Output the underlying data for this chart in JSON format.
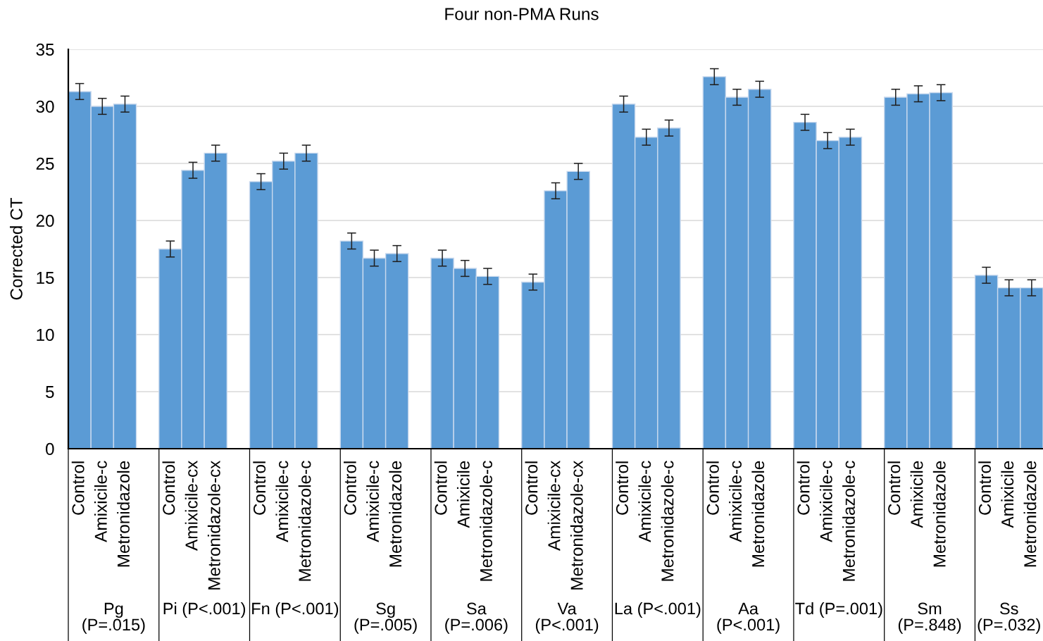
{
  "chart_data": {
    "type": "bar",
    "title": "Four non-PMA Runs",
    "ylabel": "Corrected CT",
    "categories": [
      "Control",
      "Amixicile-c",
      "Metronidazole",
      "Control",
      "Amixicile-cx",
      "Metronidazole-cx",
      "Control",
      "Amixicile-c",
      "Metronidazole-c",
      "Control",
      "Amixicile-c",
      "Metronidazole",
      "Control",
      "Amixicile",
      "Metronidazole-c",
      "Control",
      "Amixicile-cx",
      "Metronidazole-cx",
      "Control",
      "Amixicile-c",
      "Metronidazole-c",
      "Control",
      "Amixicile-c",
      "Metronidazole",
      "Control",
      "Amixicile-c",
      "Metronidazole-c",
      "Control",
      "Amixicile",
      "Metronidazole",
      "Control",
      "Amixicile",
      "Metronidazole"
    ],
    "values": [
      31.3,
      30.0,
      30.2,
      17.5,
      24.4,
      25.9,
      23.4,
      25.2,
      25.9,
      18.2,
      16.7,
      17.1,
      16.7,
      15.8,
      15.1,
      14.6,
      22.6,
      24.3,
      30.2,
      27.3,
      28.1,
      32.6,
      30.8,
      31.5,
      28.6,
      27.0,
      27.3,
      30.8,
      31.1,
      31.2,
      15.2,
      14.1,
      14.1
    ],
    "errors": [
      0.7,
      0.7,
      0.7,
      0.7,
      0.7,
      0.7,
      0.7,
      0.7,
      0.7,
      0.7,
      0.7,
      0.7,
      0.7,
      0.7,
      0.7,
      0.7,
      0.7,
      0.7,
      0.7,
      0.7,
      0.7,
      0.7,
      0.7,
      0.7,
      0.7,
      0.7,
      0.7,
      0.7,
      0.7,
      0.7,
      0.7,
      0.7,
      0.7
    ],
    "color": "#5b9bd5",
    "ylim": [
      0,
      35
    ],
    "yticks": [
      0,
      5,
      10,
      15,
      20,
      25,
      30,
      35
    ],
    "grid": "y",
    "annotations": [
      "Pg\n(P=.015)",
      "Pi (P<.001)",
      "Fn (P<.001)",
      "Sg\n(P=.005)",
      "Sa\n(P=.006)",
      "Va\n(P<.001)",
      "La (P<.001)",
      "Aa\n(P<.001)",
      "Td (P=.001)",
      "Sm\n(P=.848)",
      "Ss\n(P=.032)"
    ]
  }
}
